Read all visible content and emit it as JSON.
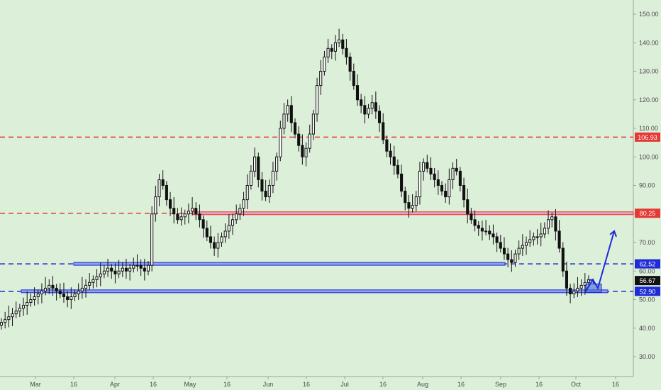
{
  "chart_data": {
    "type": "candlestick",
    "title": "",
    "xlabel": "",
    "ylabel": "",
    "ylim": [
      30,
      152
    ],
    "y_ticks": [
      "150.00",
      "140.00",
      "130.00",
      "120.00",
      "110.00",
      "100.00",
      "90.00",
      "80.00",
      "70.00",
      "60.00",
      "50.00",
      "40.00",
      "30.00"
    ],
    "x_ticks": [
      "Mar",
      "16",
      "Apr",
      "16",
      "May",
      "16",
      "Jun",
      "16",
      "Jul",
      "16",
      "Aug",
      "16",
      "Sep",
      "16",
      "Oct",
      "16"
    ],
    "price_close": [
      42,
      43,
      44,
      45,
      46,
      47,
      48,
      49,
      50,
      51,
      52,
      53,
      54,
      55,
      54,
      53,
      52,
      51,
      50,
      51,
      52,
      53,
      54,
      55,
      56,
      57,
      58,
      59,
      60,
      61,
      60,
      59,
      60,
      61,
      60,
      61,
      62,
      62,
      61,
      60,
      62,
      80,
      86,
      92,
      90,
      85,
      82,
      80,
      78,
      79,
      80,
      81,
      82,
      80,
      78,
      75,
      72,
      70,
      68,
      70,
      72,
      74,
      76,
      78,
      80,
      82,
      85,
      90,
      95,
      100,
      92,
      88,
      86,
      90,
      95,
      100,
      110,
      115,
      118,
      112,
      108,
      104,
      100,
      103,
      108,
      115,
      125,
      130,
      135,
      138,
      137,
      140,
      141,
      138,
      135,
      130,
      125,
      120,
      118,
      115,
      117,
      119,
      116,
      112,
      106,
      102,
      100,
      97,
      94,
      88,
      84,
      82,
      83,
      86,
      95,
      98,
      96,
      94,
      92,
      90,
      88,
      86,
      92,
      96,
      95,
      90,
      85,
      80,
      78,
      76,
      75,
      74,
      74,
      73,
      72,
      70,
      68,
      66,
      64,
      63,
      66,
      68,
      69,
      70,
      71,
      72,
      72,
      73,
      75,
      78,
      79,
      74,
      68,
      60,
      54,
      52,
      53,
      54,
      55,
      56,
      57
    ],
    "levels": [
      {
        "label": "106.93",
        "value": 106.93,
        "color": "#e53935"
      },
      {
        "label": "80.25",
        "value": 80.25,
        "color": "#e53935"
      },
      {
        "label": "62.52",
        "value": 62.52,
        "color": "#1f2bd6"
      },
      {
        "label": "52.90",
        "value": 52.9,
        "color": "#1f2bd6"
      }
    ],
    "last_price": {
      "label": "56.67",
      "value": 56.67
    },
    "projection_arrow": {
      "from": 53,
      "via": 57,
      "to": 74
    }
  }
}
